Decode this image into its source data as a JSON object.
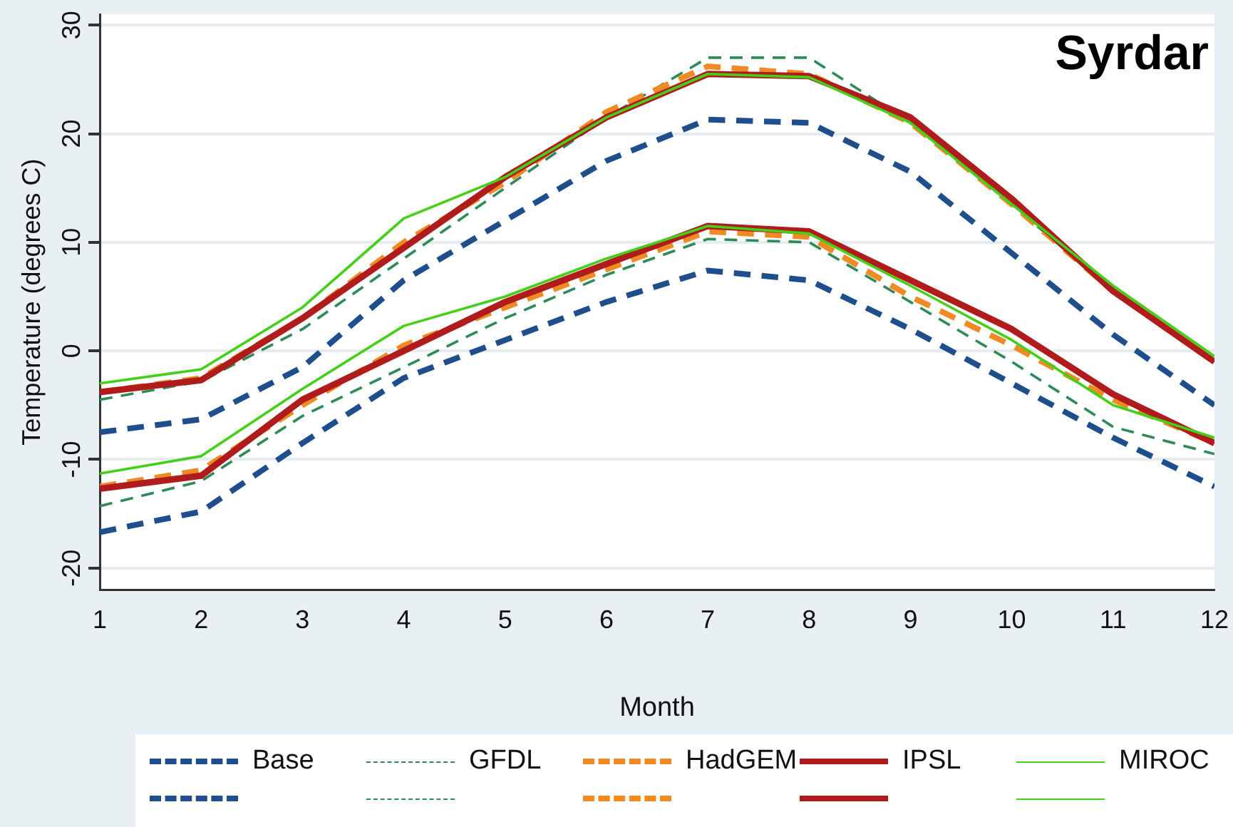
{
  "chart_data": {
    "type": "line",
    "xlabel": "Month",
    "ylabel": "Temperature (degrees C)",
    "annotations": [
      "Syrdar"
    ],
    "x": [
      1,
      2,
      3,
      4,
      5,
      6,
      7,
      8,
      9,
      10,
      11,
      12
    ],
    "xlim": [
      1,
      12
    ],
    "xticks": [
      1,
      2,
      3,
      4,
      5,
      6,
      7,
      8,
      9,
      10,
      11,
      12
    ],
    "ylim": [
      -22,
      31
    ],
    "yticks": [
      -20,
      -10,
      0,
      10,
      20,
      30
    ],
    "grid": "y",
    "legend": "bottom",
    "marker": "none",
    "series": [
      {
        "name": "Base",
        "color": "#1f4e8c",
        "line_style": "dashed",
        "values": [
          -7.5,
          -6.3,
          -1.5,
          6.5,
          12,
          17.5,
          21.3,
          21,
          16.5,
          9,
          1.5,
          -5
        ]
      },
      {
        "name": "GFDL",
        "color": "#2e8b57",
        "line_style": "dashed",
        "values": [
          -4.5,
          -2.8,
          2,
          8.5,
          15,
          21.5,
          27,
          27,
          21,
          13.5,
          5.5,
          -1
        ]
      },
      {
        "name": "HadGEM",
        "color": "#f08a24",
        "line_style": "dashed",
        "values": [
          -3.8,
          -2.5,
          3,
          10,
          15.5,
          22,
          26.2,
          25.5,
          21,
          13.5,
          5.5,
          -1
        ]
      },
      {
        "name": "IPSL",
        "color": "#b01c1c",
        "line_style": "solid",
        "values": [
          -3.8,
          -2.7,
          3,
          9.5,
          16,
          21.5,
          25.5,
          25.3,
          21.5,
          14,
          5.5,
          -1
        ]
      },
      {
        "name": "MIROC",
        "color": "#44d018",
        "line_style": "solid",
        "values": [
          -3,
          -1.7,
          4,
          12.2,
          16,
          21.5,
          25.5,
          25.2,
          21,
          13.5,
          6,
          -0.5
        ]
      },
      {
        "color": "#1f4e8c",
        "line_style": "dashed",
        "values": [
          -16.7,
          -14.8,
          -8.5,
          -2.5,
          1,
          4.5,
          7.4,
          6.5,
          2,
          -3,
          -8,
          -12.5
        ]
      },
      {
        "color": "#2e8b57",
        "line_style": "dashed",
        "values": [
          -14.3,
          -12,
          -6,
          -1.5,
          3,
          7,
          10.3,
          10,
          4.5,
          -1,
          -7,
          -9.5
        ]
      },
      {
        "color": "#f08a24",
        "line_style": "dashed",
        "values": [
          -12.5,
          -11,
          -5,
          0.5,
          4,
          7.5,
          11,
          10.5,
          5,
          0.5,
          -4.5,
          -8.5
        ]
      },
      {
        "color": "#b01c1c",
        "line_style": "solid",
        "values": [
          -12.7,
          -11.5,
          -4.5,
          0,
          4.5,
          8,
          11.5,
          11,
          6.5,
          2,
          -4,
          -8.5
        ]
      },
      {
        "color": "#44d018",
        "line_style": "solid",
        "values": [
          -11.3,
          -9.7,
          -3.5,
          2.3,
          5,
          8.5,
          11.5,
          10.8,
          6,
          1,
          -5,
          -8
        ]
      }
    ]
  }
}
